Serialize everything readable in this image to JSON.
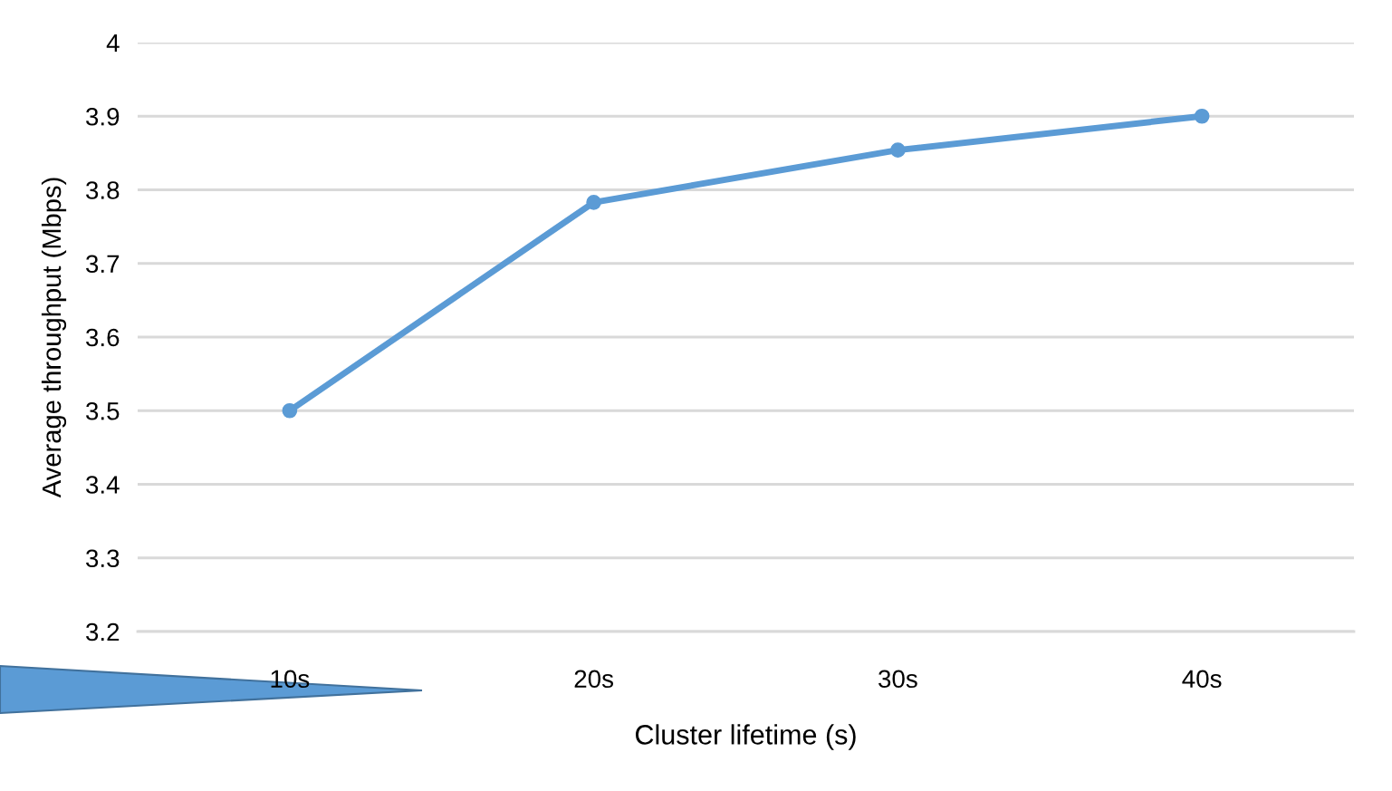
{
  "chart_data": {
    "type": "line",
    "xlabel": "Cluster lifetime (s)",
    "ylabel": "Average throughput (Mbps)",
    "categories": [
      "10s",
      "20s",
      "30s",
      "40s"
    ],
    "series": [
      {
        "color": "#5b9bd5",
        "values": [
          3.5,
          3.783,
          3.854,
          3.9
        ]
      }
    ],
    "ylim": [
      3.2,
      4
    ],
    "yticks": [
      {
        "value": 3.2,
        "label": "3.2"
      },
      {
        "value": 3.3,
        "label": "3.3"
      },
      {
        "value": 3.4,
        "label": "3.4"
      },
      {
        "value": 3.5,
        "label": "3.5"
      },
      {
        "value": 3.6,
        "label": "3.6"
      },
      {
        "value": 3.7,
        "label": "3.7"
      },
      {
        "value": 3.8,
        "label": "3.8"
      },
      {
        "value": 3.9,
        "label": "3.9"
      },
      {
        "value": 4,
        "label": "4"
      }
    ],
    "grid": "y",
    "marker": "circle",
    "line_style": "solid"
  }
}
